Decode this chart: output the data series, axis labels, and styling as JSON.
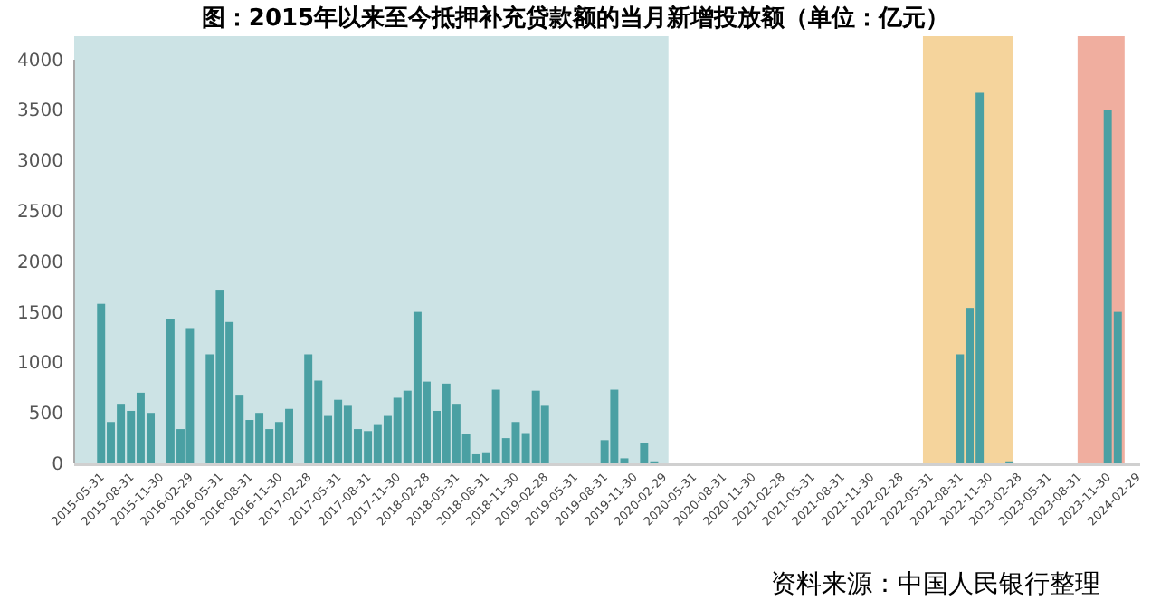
{
  "chart_data": {
    "type": "bar",
    "title": "图：2015年以来至今抵押补充贷款额的当月新增投放额（单位：亿元）",
    "annotations": [
      "资料来源：中国人民银行整理"
    ],
    "x": [
      "2015-05-31",
      "2015-06-30",
      "2015-07-31",
      "2015-08-31",
      "2015-09-30",
      "2015-10-31",
      "2015-11-30",
      "2015-12-31",
      "2016-01-31",
      "2016-02-29",
      "2016-03-31",
      "2016-04-30",
      "2016-05-31",
      "2016-06-30",
      "2016-07-31",
      "2016-08-31",
      "2016-09-30",
      "2016-10-31",
      "2016-11-30",
      "2016-12-31",
      "2017-01-31",
      "2017-02-28",
      "2017-03-31",
      "2017-04-30",
      "2017-05-31",
      "2017-06-30",
      "2017-07-31",
      "2017-08-31",
      "2017-09-30",
      "2017-10-31",
      "2017-11-30",
      "2017-12-31",
      "2018-01-31",
      "2018-02-28",
      "2018-03-31",
      "2018-04-30",
      "2018-05-31",
      "2018-06-30",
      "2018-07-31",
      "2018-08-31",
      "2018-09-30",
      "2018-10-31",
      "2018-11-30",
      "2018-12-31",
      "2019-01-31",
      "2019-02-28",
      "2019-03-31",
      "2019-04-30",
      "2019-05-31",
      "2019-06-30",
      "2019-07-31",
      "2019-08-31",
      "2019-09-30",
      "2019-10-31",
      "2019-11-30",
      "2019-12-31",
      "2020-01-31",
      "2020-02-29",
      "2020-03-31",
      "2020-04-30",
      "2020-05-31",
      "2020-06-30",
      "2020-07-31",
      "2020-08-31",
      "2020-09-30",
      "2020-10-31",
      "2020-11-30",
      "2020-12-31",
      "2021-01-31",
      "2021-02-28",
      "2021-03-31",
      "2021-04-30",
      "2021-05-31",
      "2021-06-30",
      "2021-07-31",
      "2021-08-31",
      "2021-09-30",
      "2021-10-31",
      "2021-11-30",
      "2021-12-31",
      "2022-01-31",
      "2022-02-28",
      "2022-03-31",
      "2022-04-30",
      "2022-05-31",
      "2022-06-30",
      "2022-07-31",
      "2022-08-31",
      "2022-09-30",
      "2022-10-31",
      "2022-11-30",
      "2022-12-31",
      "2023-01-31",
      "2023-02-28",
      "2023-03-31",
      "2023-04-30",
      "2023-05-31",
      "2023-06-30",
      "2023-07-31",
      "2023-08-31",
      "2023-09-30",
      "2023-10-31",
      "2023-11-30",
      "2023-12-31",
      "2024-01-31",
      "2024-02-29"
    ],
    "values": [
      1580,
      410,
      590,
      520,
      700,
      500,
      0,
      1430,
      340,
      1340,
      0,
      1080,
      1720,
      1400,
      680,
      430,
      500,
      340,
      410,
      540,
      0,
      1080,
      820,
      470,
      630,
      570,
      340,
      320,
      380,
      470,
      650,
      720,
      1500,
      810,
      520,
      790,
      590,
      290,
      90,
      110,
      730,
      250,
      410,
      300,
      720,
      570,
      0,
      0,
      0,
      0,
      0,
      230,
      730,
      50,
      0,
      200,
      20,
      0,
      0,
      0,
      0,
      0,
      0,
      0,
      0,
      0,
      0,
      0,
      0,
      0,
      0,
      0,
      0,
      0,
      0,
      0,
      0,
      0,
      0,
      0,
      0,
      0,
      0,
      0,
      0,
      0,
      0,
      1080,
      1540,
      3670,
      0,
      0,
      20,
      0,
      0,
      0,
      0,
      0,
      0,
      0,
      0,
      0,
      3500,
      1500,
      0,
      0
    ],
    "color": "#4aa0a3",
    "xlim": [
      "2015-03-09",
      "2024-03-09"
    ],
    "xticks": [
      "2015-05-31",
      "2015-08-31",
      "2015-11-30",
      "2016-02-29",
      "2016-05-31",
      "2016-08-31",
      "2016-11-30",
      "2017-02-28",
      "2017-05-31",
      "2017-08-31",
      "2017-11-30",
      "2018-02-28",
      "2018-05-31",
      "2018-08-31",
      "2018-11-30",
      "2019-02-28",
      "2019-05-31",
      "2019-08-31",
      "2019-11-30",
      "2020-02-29",
      "2020-05-31",
      "2020-08-31",
      "2020-11-30",
      "2021-02-28",
      "2021-05-31",
      "2021-08-31",
      "2021-11-30",
      "2022-02-28",
      "2022-05-31",
      "2022-08-31",
      "2022-11-30",
      "2023-02-28",
      "2023-05-31",
      "2023-08-31",
      "2023-11-30",
      "2024-02-29"
    ],
    "ylim": [
      0,
      4230
    ],
    "yticks": [
      0,
      500,
      1000,
      1500,
      2000,
      2500,
      3000,
      3500,
      4000
    ],
    "bands": [
      {
        "axis": "x",
        "from": "2015-03-09",
        "to": "2020-03-15",
        "color": "#cce3e5"
      },
      {
        "axis": "x",
        "from": "2022-05-09",
        "to": "2023-02-12",
        "color": "#f5d49c"
      },
      {
        "axis": "x",
        "from": "2023-08-29",
        "to": "2024-01-21",
        "color": "#f0ae9f"
      }
    ],
    "grid": false
  }
}
